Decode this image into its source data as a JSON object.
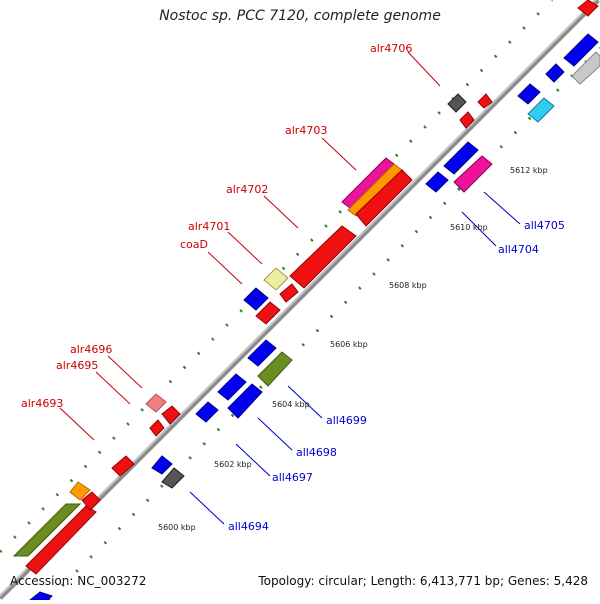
{
  "title": "Nostoc sp. PCC 7120, complete genome",
  "footer": {
    "accession": "Accession: NC_003272",
    "summary": "Topology: circular; Length: 6,413,771 bp; Genes: 5,428"
  },
  "colors": {
    "forward_label": "#cc0000",
    "reverse_label": "#0000cc",
    "backbone": "#8c8c8c",
    "tick": "#1f8a1f"
  },
  "scale_labels": [
    {
      "name": "scale-5600",
      "text": "5600 kbp"
    },
    {
      "name": "scale-5602",
      "text": "5602 kbp"
    },
    {
      "name": "scale-5604",
      "text": "5604 kbp"
    },
    {
      "name": "scale-5606",
      "text": "5606 kbp"
    },
    {
      "name": "scale-5608",
      "text": "5608 kbp"
    },
    {
      "name": "scale-5610",
      "text": "5610 kbp"
    },
    {
      "name": "scale-5612",
      "text": "5612 kbp"
    }
  ],
  "gene_labels": [
    {
      "name": "label-alr4706",
      "text": "alr4706",
      "strand": "forward"
    },
    {
      "name": "label-alr4703",
      "text": "alr4703",
      "strand": "forward"
    },
    {
      "name": "label-alr4702",
      "text": "alr4702",
      "strand": "forward"
    },
    {
      "name": "label-alr4701",
      "text": "alr4701",
      "strand": "forward"
    },
    {
      "name": "label-coaD",
      "text": "coaD",
      "strand": "forward"
    },
    {
      "name": "label-alr4696",
      "text": "alr4696",
      "strand": "forward"
    },
    {
      "name": "label-alr4695",
      "text": "alr4695",
      "strand": "forward"
    },
    {
      "name": "label-alr4693",
      "text": "alr4693",
      "strand": "forward"
    },
    {
      "name": "label-all4705",
      "text": "all4705",
      "strand": "reverse"
    },
    {
      "name": "label-all4704",
      "text": "all4704",
      "strand": "reverse"
    },
    {
      "name": "label-all4699",
      "text": "all4699",
      "strand": "reverse"
    },
    {
      "name": "label-all4698",
      "text": "all4698",
      "strand": "reverse"
    },
    {
      "name": "label-all4697",
      "text": "all4697",
      "strand": "reverse"
    },
    {
      "name": "label-all4694",
      "text": "all4694",
      "strand": "reverse"
    }
  ]
}
